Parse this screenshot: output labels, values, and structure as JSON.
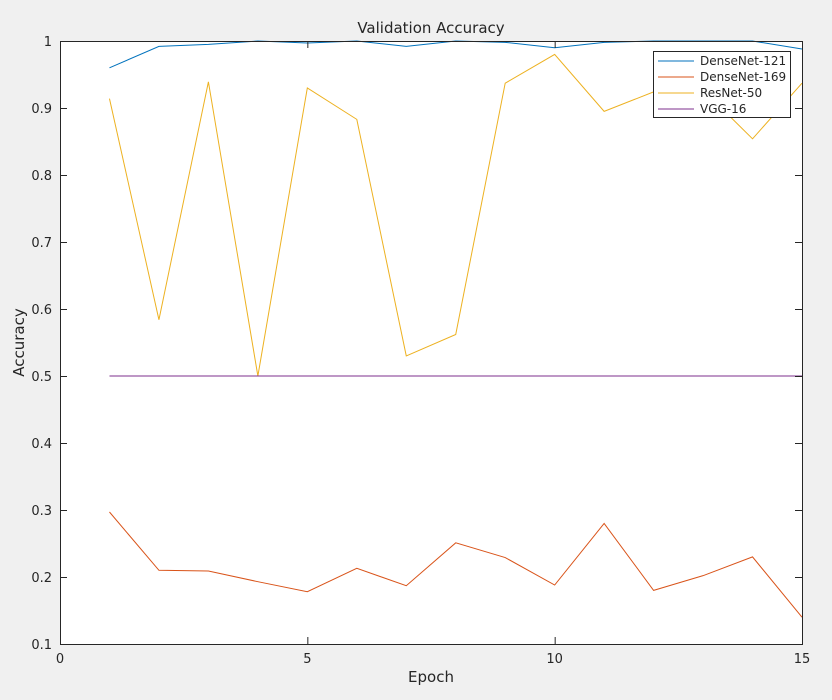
{
  "chart_data": {
    "type": "line",
    "title": "Validation Accuracy",
    "xlabel": "Epoch",
    "ylabel": "Accuracy",
    "xlim": [
      0,
      15
    ],
    "ylim": [
      0.1,
      1
    ],
    "xticks": [
      0,
      5,
      10,
      15
    ],
    "xtick_labels": [
      "0",
      "5",
      "10",
      "15"
    ],
    "yticks": [
      0.1,
      0.2,
      0.3,
      0.4,
      0.5,
      0.6,
      0.7,
      0.8,
      0.9,
      1
    ],
    "ytick_labels": [
      "0.1",
      "0.2",
      "0.3",
      "0.4",
      "0.5",
      "0.6",
      "0.7",
      "0.8",
      "0.9",
      "1"
    ],
    "grid": false,
    "legend_position": "top-right",
    "x": [
      1,
      2,
      3,
      4,
      5,
      6,
      7,
      8,
      9,
      10,
      11,
      12,
      13,
      14,
      15
    ],
    "series": [
      {
        "name": "DenseNet-121",
        "color": "#0072bd",
        "values": [
          0.96,
          0.992,
          0.995,
          1.0,
          0.997,
          1.0,
          0.992,
          1.0,
          0.998,
          0.99,
          0.998,
          1.0,
          1.0,
          1.0,
          0.988
        ]
      },
      {
        "name": "DenseNet-169",
        "color": "#d95319",
        "values": [
          0.297,
          0.21,
          0.209,
          0.193,
          0.178,
          0.213,
          0.187,
          0.251,
          0.229,
          0.188,
          0.28,
          0.18,
          0.202,
          0.23,
          0.14
        ]
      },
      {
        "name": "ResNet-50",
        "color": "#edb120",
        "values": [
          0.914,
          0.584,
          0.939,
          0.5,
          0.93,
          0.883,
          0.53,
          0.562,
          0.937,
          0.98,
          0.895,
          0.924,
          0.927,
          0.854,
          0.937
        ]
      },
      {
        "name": "VGG-16",
        "color": "#7e2f8e",
        "values": [
          0.5,
          0.5,
          0.5,
          0.5,
          0.5,
          0.5,
          0.5,
          0.5,
          0.5,
          0.5,
          0.5,
          0.5,
          0.5,
          0.5,
          0.5
        ]
      }
    ]
  }
}
